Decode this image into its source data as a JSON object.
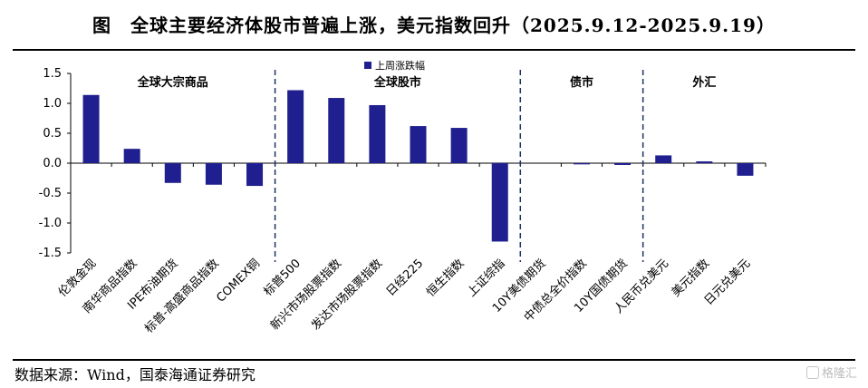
{
  "header": {
    "title": "图　全球主要经济体股市普遍上涨，美元指数回升（2025.9.12-2025.9.19）"
  },
  "footer": {
    "source": "数据来源：Wind，国泰海通证券研究",
    "watermark": "格隆汇"
  },
  "colors": {
    "bar": "#1f1f8f",
    "axis": "#000000",
    "divider": "#1f2f5f"
  },
  "chart_data": {
    "type": "bar",
    "title": "",
    "xlabel": "",
    "ylabel": "",
    "ylim": [
      -1.5,
      1.5
    ],
    "yticks": [
      1.5,
      1.0,
      0.5,
      0.0,
      -0.5,
      -1.0,
      -1.5
    ],
    "ytick_labels": [
      "1.5",
      "1.0",
      "0.5",
      "0.0",
      "-0.5",
      "-1.0",
      "-1.5"
    ],
    "grid": false,
    "legend": {
      "position": "top-center",
      "entries": [
        "上周涨跌幅"
      ]
    },
    "categories": [
      "伦敦金现",
      "南华商品指数",
      "IPE布油期货",
      "标普-高盛商品指数",
      "COMEX铜",
      "标普500",
      "新兴市场股票指数",
      "发达市场股票指数",
      "日经225",
      "恒生指数",
      "上证综指",
      "10Y美债期货",
      "中债总全价指数",
      "10Y国债期货",
      "人民币兑美元",
      "美元指数",
      "日元兑美元"
    ],
    "series": [
      {
        "name": "上周涨跌幅",
        "values": [
          1.14,
          0.24,
          -0.33,
          -0.36,
          -0.38,
          1.22,
          1.09,
          0.97,
          0.62,
          0.59,
          -1.31,
          0.0,
          -0.02,
          -0.03,
          0.13,
          0.03,
          -0.21
        ]
      }
    ],
    "groups": [
      {
        "label": "全球大宗商品",
        "start": 0,
        "end": 4
      },
      {
        "label": "全球股市",
        "start": 5,
        "end": 10
      },
      {
        "label": "债市",
        "start": 11,
        "end": 13
      },
      {
        "label": "外汇",
        "start": 14,
        "end": 16
      }
    ]
  }
}
